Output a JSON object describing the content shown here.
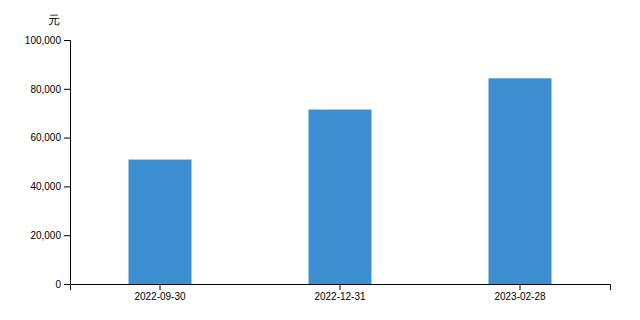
{
  "chart_data": {
    "type": "bar",
    "ylabel": "元",
    "categories": [
      "2022-09-30",
      "2022-12-31",
      "2023-02-28"
    ],
    "values": [
      51000,
      71500,
      84300
    ],
    "color": "#3d8fd1",
    "ylim": [
      0,
      100000
    ],
    "yticks": [
      0,
      {
        "value": 20000,
        "label": "20,000"
      },
      {
        "value": 40000,
        "label": "40,000"
      },
      {
        "value": 60000,
        "label": "60,000"
      },
      {
        "value": 80000,
        "label": "80,000"
      },
      {
        "value": 100000,
        "label": "100,000"
      }
    ],
    "grid": false
  }
}
